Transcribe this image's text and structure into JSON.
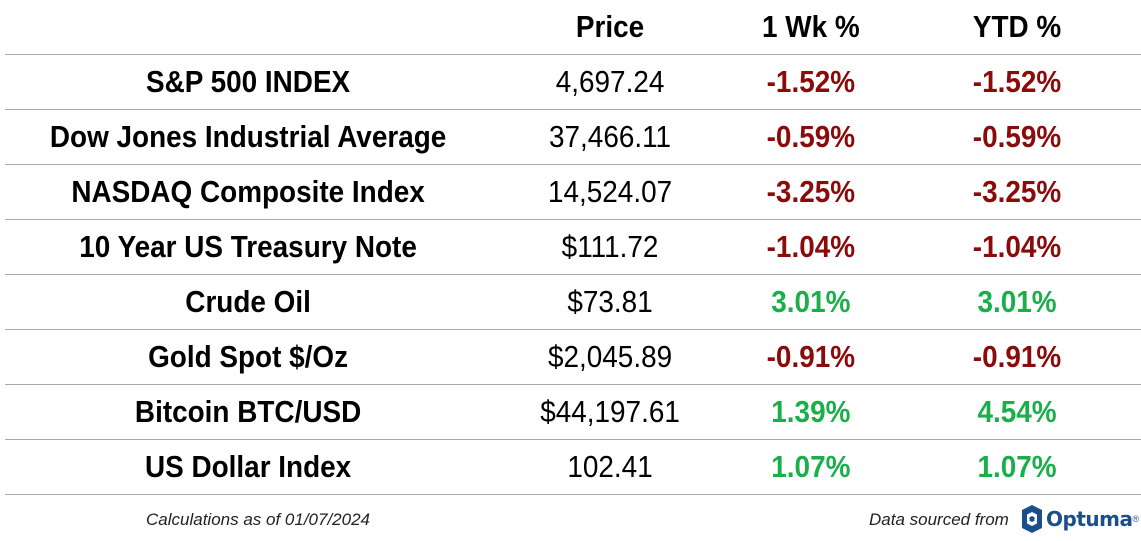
{
  "header": {
    "name": "",
    "price": "Price",
    "wk": "1 Wk %",
    "ytd": "YTD %"
  },
  "rows": [
    {
      "name": "S&P 500 INDEX",
      "price": "4,697.24",
      "wk": "-1.52%",
      "ytd": "-1.52%"
    },
    {
      "name": "Dow Jones Industrial Average",
      "price": "37,466.11",
      "wk": "-0.59%",
      "ytd": "-0.59%"
    },
    {
      "name": "NASDAQ Composite Index",
      "price": "14,524.07",
      "wk": "-3.25%",
      "ytd": "-3.25%"
    },
    {
      "name": "10 Year US Treasury Note",
      "price": "$111.72",
      "wk": "-1.04%",
      "ytd": "-1.04%"
    },
    {
      "name": "Crude Oil",
      "price": "$73.81",
      "wk": "3.01%",
      "ytd": "3.01%"
    },
    {
      "name": "Gold Spot $/Oz",
      "price": "$2,045.89",
      "wk": "-0.91%",
      "ytd": "-0.91%"
    },
    {
      "name": "Bitcoin BTC/USD",
      "price": "$44,197.61",
      "wk": "1.39%",
      "ytd": "4.54%"
    },
    {
      "name": "US Dollar Index",
      "price": "102.41",
      "wk": "1.07%",
      "ytd": "1.07%"
    }
  ],
  "footer": {
    "calculations": "Calculations as of 01/07/2024",
    "source": "Data sourced from",
    "logo_text": "Optuma",
    "logo_reg": "®"
  },
  "colors": {
    "negative": "#8b0a0a",
    "positive": "#1aaf4b",
    "brand": "#1a4f8b"
  }
}
